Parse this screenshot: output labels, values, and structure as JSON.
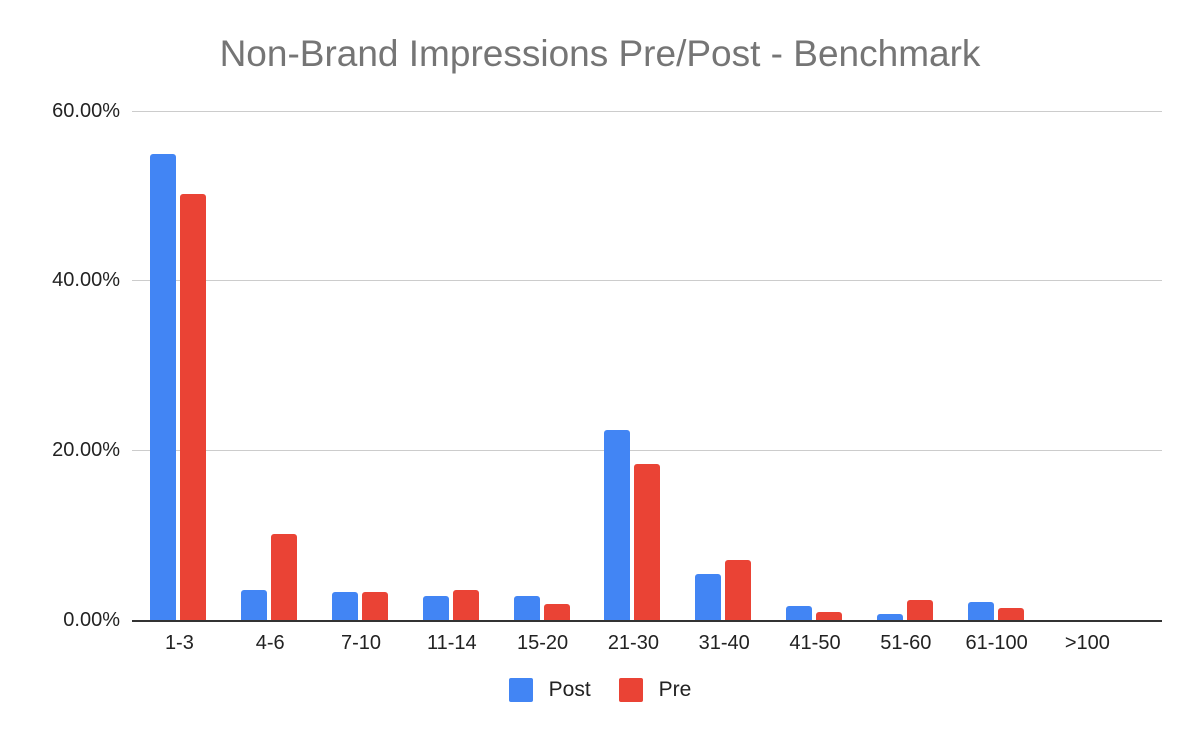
{
  "title": "Non-Brand Impressions Pre/Post - Benchmark",
  "colors": {
    "post": "#4285f4",
    "pre": "#ea4335",
    "grid": "#cccccc",
    "title": "#757575"
  },
  "y_ticks": [
    "60.00%",
    "40.00%",
    "20.00%",
    "0.00%"
  ],
  "legend": [
    {
      "label": "Post",
      "color": "#4285f4"
    },
    {
      "label": "Pre",
      "color": "#ea4335"
    }
  ],
  "chart_data": {
    "type": "bar",
    "title": "Non-Brand Impressions Pre/Post - Benchmark",
    "xlabel": "",
    "ylabel": "",
    "ylim": [
      0,
      60
    ],
    "y_ticks": [
      "0.00%",
      "20.00%",
      "40.00%",
      "60.00%"
    ],
    "grid": true,
    "legend_position": "bottom",
    "categories": [
      "1-3",
      "4-6",
      "7-10",
      "11-14",
      "15-20",
      "21-30",
      "31-40",
      "41-50",
      "51-60",
      "61-100",
      ">100"
    ],
    "series": [
      {
        "name": "Post",
        "color": "#4285f4",
        "values": [
          54.9,
          3.5,
          3.3,
          2.8,
          2.8,
          22.4,
          5.4,
          1.7,
          0.7,
          2.1,
          0.0
        ]
      },
      {
        "name": "Pre",
        "color": "#ea4335",
        "values": [
          50.2,
          10.2,
          3.3,
          3.5,
          1.9,
          18.4,
          7.1,
          0.9,
          2.4,
          1.4,
          0.0
        ]
      }
    ]
  }
}
